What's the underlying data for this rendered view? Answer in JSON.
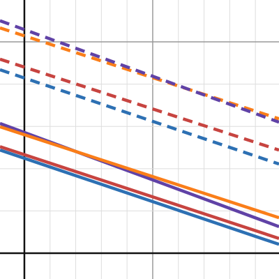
{
  "chart_data": {
    "type": "line",
    "x": [
      -0.95,
      9.92
    ],
    "xlim": [
      -0.95,
      9.92
    ],
    "ylim": [
      -0.61,
      5.99
    ],
    "xticks": [
      1,
      2,
      3,
      4,
      5,
      6,
      7,
      8,
      9
    ],
    "yticks": [
      1,
      2,
      3,
      4,
      5
    ],
    "grid": true,
    "series": [
      {
        "color": "#2d70b3",
        "dashed": false,
        "values": [
          2.44,
          0.21
        ]
      },
      {
        "color": "#c74440",
        "dashed": false,
        "values": [
          2.52,
          0.35
        ]
      },
      {
        "color": "#6042a6",
        "dashed": false,
        "values": [
          3.07,
          0.63
        ]
      },
      {
        "color": "#fa7e19",
        "dashed": false,
        "values": [
          2.99,
          0.84
        ]
      },
      {
        "color": "#2d70b3",
        "dashed": true,
        "values": [
          4.34,
          2.11
        ]
      },
      {
        "color": "#c74440",
        "dashed": true,
        "values": [
          4.59,
          2.44
        ]
      },
      {
        "color": "#fa7e19",
        "dashed": true,
        "values": [
          5.33,
          3.18
        ]
      },
      {
        "color": "#6042a6",
        "dashed": true,
        "values": [
          5.5,
          3.1
        ]
      }
    ]
  }
}
